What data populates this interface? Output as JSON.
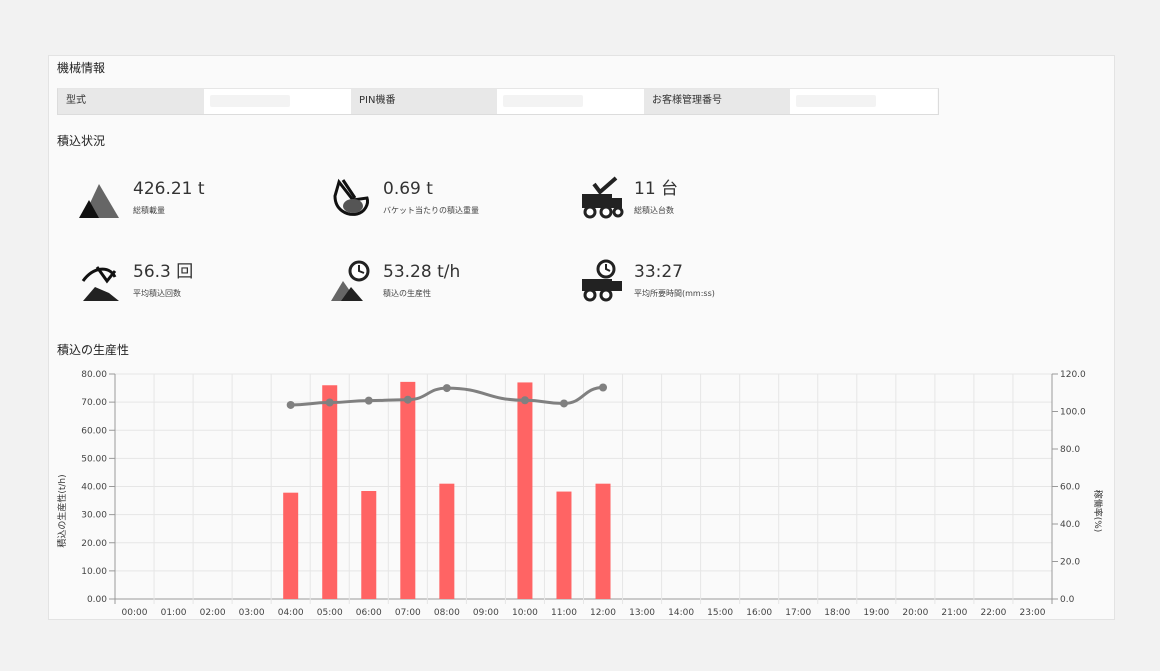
{
  "machine_info": {
    "title": "機械情報",
    "fields": [
      {
        "label": "型式",
        "value": ""
      },
      {
        "label": "PIN機番",
        "value": ""
      },
      {
        "label": "お客様管理番号",
        "value": ""
      }
    ]
  },
  "loading_status": {
    "title": "積込状況",
    "kpis": [
      {
        "value": "426.21 t",
        "caption": "総積載量",
        "icon": "mountain-icon"
      },
      {
        "value": "0.69 t",
        "caption": "バケット当たりの積込重量",
        "icon": "bucket-icon"
      },
      {
        "value": "11 台",
        "caption": "総積込台数",
        "icon": "dump-truck-check-icon"
      },
      {
        "value": "56.3 回",
        "caption": "平均積込回数",
        "icon": "excavator-bucket-icon"
      },
      {
        "value": "53.28 t/h",
        "caption": "積込の生産性",
        "icon": "mountain-clock-icon"
      },
      {
        "value": "33:27",
        "caption": "平均所要時間(mm:ss)",
        "icon": "dump-truck-clock-icon"
      }
    ]
  },
  "productivity_chart_title": "積込の生産性",
  "colors": {
    "bar": "#ff6464",
    "line": "#808080",
    "grid": "#e6e6e6"
  },
  "chart_data": {
    "type": "bar",
    "categories": [
      "00:00",
      "01:00",
      "02:00",
      "03:00",
      "04:00",
      "05:00",
      "06:00",
      "07:00",
      "08:00",
      "09:00",
      "10:00",
      "11:00",
      "12:00",
      "13:00",
      "14:00",
      "15:00",
      "16:00",
      "17:00",
      "18:00",
      "19:00",
      "20:00",
      "21:00",
      "22:00",
      "23:00"
    ],
    "series": [
      {
        "type": "bar",
        "axis": "left",
        "values": [
          null,
          null,
          null,
          null,
          37.8,
          76.0,
          38.4,
          77.2,
          41.0,
          null,
          77.0,
          38.2,
          41.0,
          null,
          null,
          null,
          null,
          null,
          null,
          null,
          null,
          null,
          null,
          null
        ]
      },
      {
        "type": "line",
        "axis": "right",
        "values": [
          null,
          null,
          null,
          null,
          103.5,
          104.8,
          105.8,
          106.3,
          112.5,
          null,
          106.0,
          104.3,
          112.8,
          null,
          null,
          null,
          null,
          null,
          null,
          null,
          null,
          null,
          null,
          null
        ]
      }
    ],
    "ylabel": "積込の生産性(t/h)",
    "y2label": "稼働率(%)",
    "ylim": [
      0,
      80
    ],
    "y2lim": [
      0,
      120
    ],
    "yticks": [
      "0.00",
      "10.00",
      "20.00",
      "30.00",
      "40.00",
      "50.00",
      "60.00",
      "70.00",
      "80.00"
    ],
    "y2ticks": [
      "0.0",
      "20.0",
      "40.0",
      "60.0",
      "80.0",
      "100.0",
      "120.0"
    ],
    "grid": true
  }
}
